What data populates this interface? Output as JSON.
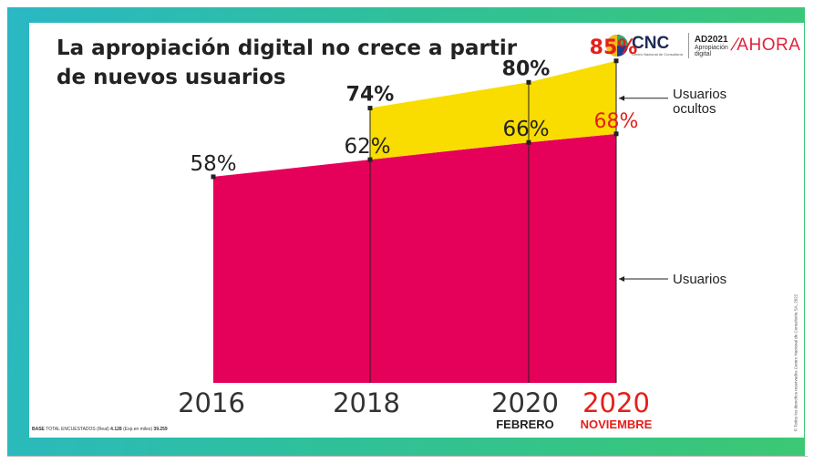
{
  "title_line1": "La apropiación digital no crece a partir",
  "title_line2": "de nuevos usuarios",
  "logo": {
    "cnc_word": "CNC",
    "cnc_sub": "Centro Nacional de Consultoría",
    "ad_code": "AD2021",
    "ad_desc": "Apropiación digital",
    "ahora": "AHORA"
  },
  "colors": {
    "usuarios": "#e5005a",
    "usuarios_ocultos": "#f9dc00",
    "highlight": "#e3201b",
    "text": "#222222",
    "frame_start": "#2ab8c4",
    "frame_end": "#3cc873"
  },
  "chart_data": {
    "type": "area",
    "x": [
      "2016",
      "2018",
      "2020",
      "2020"
    ],
    "x_sublabels": [
      "",
      "",
      "FEBRERO",
      "NOVIEMBRE"
    ],
    "series": [
      {
        "name": "Usuarios",
        "values": [
          58,
          62,
          66,
          68
        ],
        "labels": [
          "58%",
          "62%",
          "66%",
          "68%"
        ]
      },
      {
        "name": "Usuarios ocultos",
        "values": [
          null,
          74,
          80,
          85
        ],
        "labels": [
          "",
          "74%",
          "80%",
          "85%"
        ]
      }
    ],
    "legend_placement": "right",
    "grid": false,
    "highlight_index": 3
  },
  "base_note": {
    "base_label": "BASE",
    "total_label": "TOTAL ENCUESTADOS (Real)",
    "real_value": "4.128",
    "exp_label": "(Exp.en miles)",
    "exp_value": "39.259"
  },
  "copyright": "© Todos los derechos reservados Centro Nacional de Consultoría SA, 2022"
}
